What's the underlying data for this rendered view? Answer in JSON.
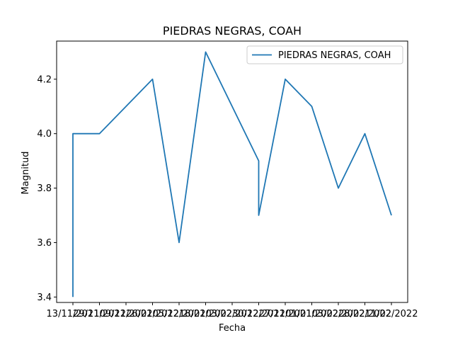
{
  "chart_data": {
    "type": "line",
    "title": "PIEDRAS NEGRAS, COAH",
    "xlabel": "Fecha",
    "ylabel": "Magnitud",
    "x_ticks": [
      "13/11/2021",
      "29/11/2021",
      "09/12/2021",
      "26/02/2022",
      "05/12/2021",
      "18/02/2022",
      "03/02/2022",
      "30/12/2021",
      "27/12/2021",
      "01/01/2022",
      "03/02/2022",
      "28/02/2022",
      "11/02/2022"
    ],
    "y_ticks": [
      "3.4",
      "3.6",
      "3.8",
      "4.0",
      "4.2"
    ],
    "ylim": [
      3.38,
      4.34
    ],
    "grid": false,
    "legend": {
      "position": "top-right"
    },
    "series": [
      {
        "name": "PIEDRAS NEGRAS, COAH",
        "color": "#1f77b4",
        "points": [
          {
            "x": 0,
            "y": 3.4
          },
          {
            "x": 0,
            "y": 4.0
          },
          {
            "x": 1,
            "y": 4.0
          },
          {
            "x": 3,
            "y": 4.2
          },
          {
            "x": 4,
            "y": 3.6
          },
          {
            "x": 5,
            "y": 4.3
          },
          {
            "x": 7,
            "y": 3.9
          },
          {
            "x": 7,
            "y": 3.7
          },
          {
            "x": 8,
            "y": 4.2
          },
          {
            "x": 9,
            "y": 4.1
          },
          {
            "x": 10,
            "y": 3.8
          },
          {
            "x": 11,
            "y": 4.0
          },
          {
            "x": 12,
            "y": 3.7
          }
        ]
      }
    ]
  }
}
